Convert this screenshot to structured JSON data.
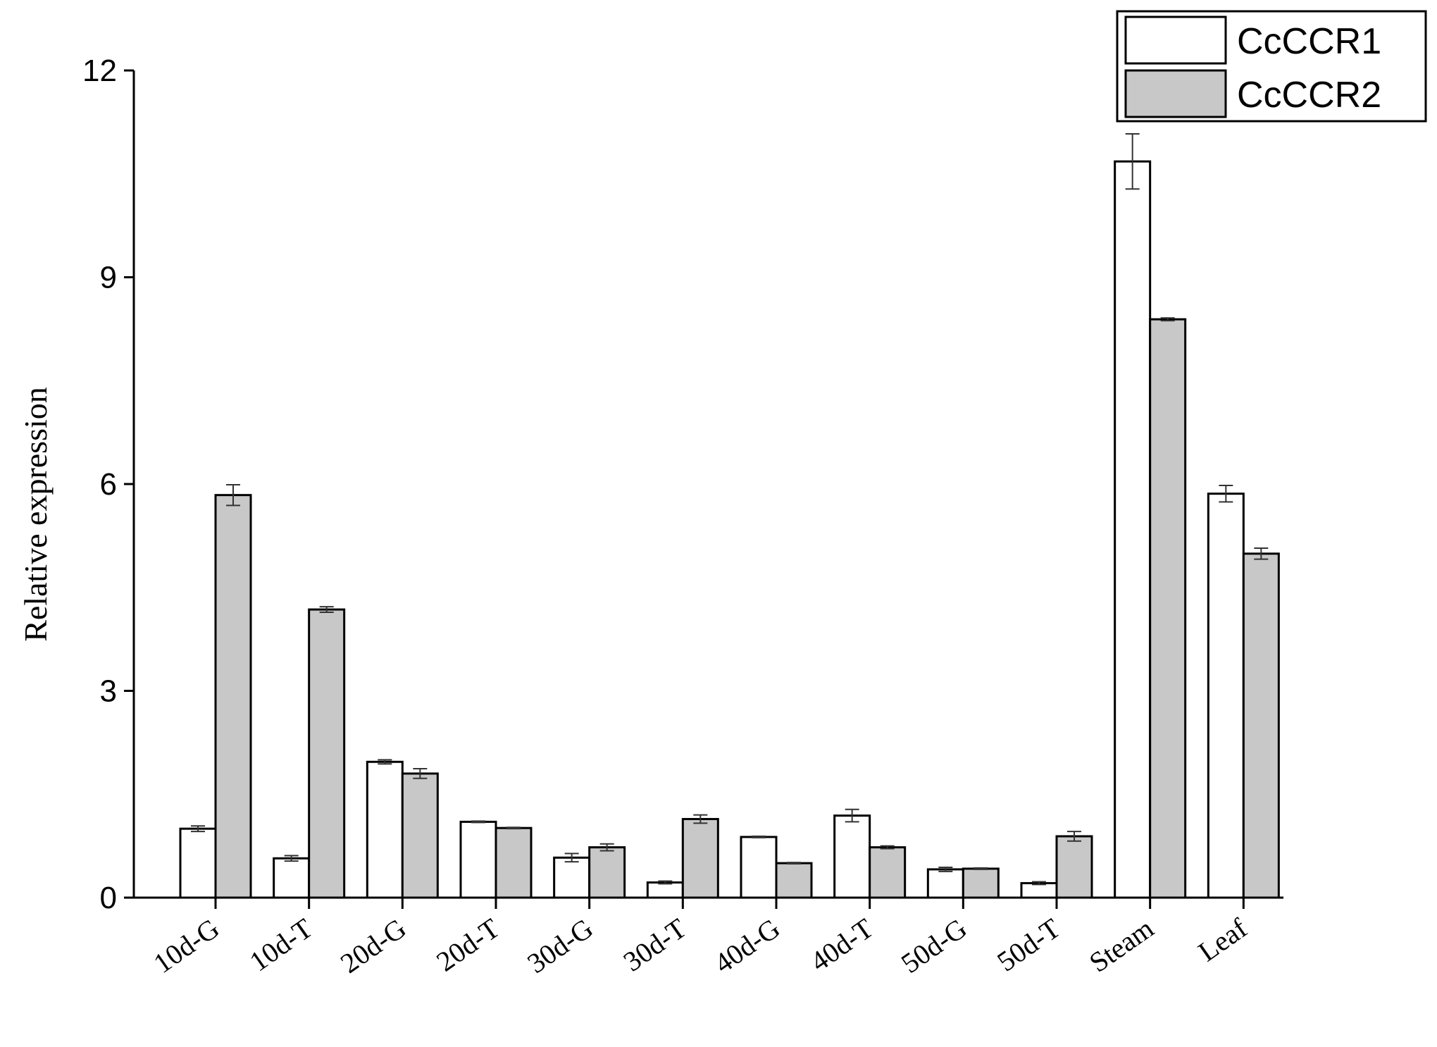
{
  "chart_data": {
    "type": "bar",
    "title": "",
    "xlabel": "",
    "ylabel": "Relative expression",
    "ylim": [
      0,
      12
    ],
    "yticks": [
      0,
      3,
      6,
      9,
      12
    ],
    "grid": false,
    "legend_position": "top-right",
    "categories": [
      "10d-G",
      "10d-T",
      "20d-G",
      "20d-T",
      "30d-G",
      "30d-T",
      "40d-G",
      "40d-T",
      "50d-G",
      "50d-T",
      "Steam",
      "Leaf"
    ],
    "series": [
      {
        "name": "CcCCR1",
        "color": "#ffffff",
        "values": [
          1.0,
          0.57,
          1.97,
          1.1,
          0.58,
          0.22,
          0.88,
          1.19,
          0.41,
          0.21,
          10.68,
          5.86
        ],
        "errors": [
          0.04,
          0.04,
          0.03,
          0.01,
          0.06,
          0.02,
          0.01,
          0.09,
          0.03,
          0.02,
          0.4,
          0.12
        ]
      },
      {
        "name": "CcCCR2",
        "color": "#c8c8c8",
        "values": [
          5.84,
          4.18,
          1.8,
          1.01,
          0.73,
          1.14,
          0.5,
          0.73,
          0.42,
          0.89,
          8.39,
          4.99
        ],
        "errors": [
          0.15,
          0.04,
          0.07,
          0.01,
          0.05,
          0.06,
          0.01,
          0.02,
          0.01,
          0.07,
          0.02,
          0.08
        ]
      }
    ]
  }
}
